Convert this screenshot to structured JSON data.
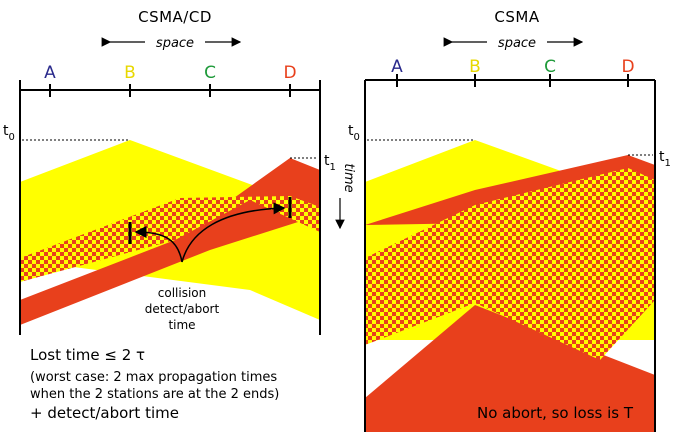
{
  "left": {
    "title": "CSMA/CD",
    "space_label": "space",
    "stations": [
      "A",
      "B",
      "C",
      "D"
    ],
    "t0": "t",
    "t0_sub": "0",
    "t1": "t",
    "t1_sub": "1",
    "time_label": "time",
    "collision_note": [
      "collision",
      "detect/abort",
      "time"
    ],
    "lost_time": "Lost time ≤ 2 τ",
    "worst_case": [
      "(worst case: 2 max propagation times",
      "when the 2 stations are at the 2 ends)"
    ],
    "plus": "+ detect/abort time"
  },
  "right": {
    "title": "CSMA",
    "space_label": "space",
    "stations": [
      "A",
      "B",
      "C",
      "D"
    ],
    "t0": "t",
    "t0_sub": "0",
    "t1": "t",
    "t1_sub": "1",
    "footer": "No abort, so loss is T"
  },
  "colors": {
    "yellow": "#ffff00",
    "red": "#e8401c",
    "station_a": "#2a2a8c",
    "station_b": "#e8d800",
    "station_c": "#1f9a3a",
    "station_d": "#e8401c"
  }
}
